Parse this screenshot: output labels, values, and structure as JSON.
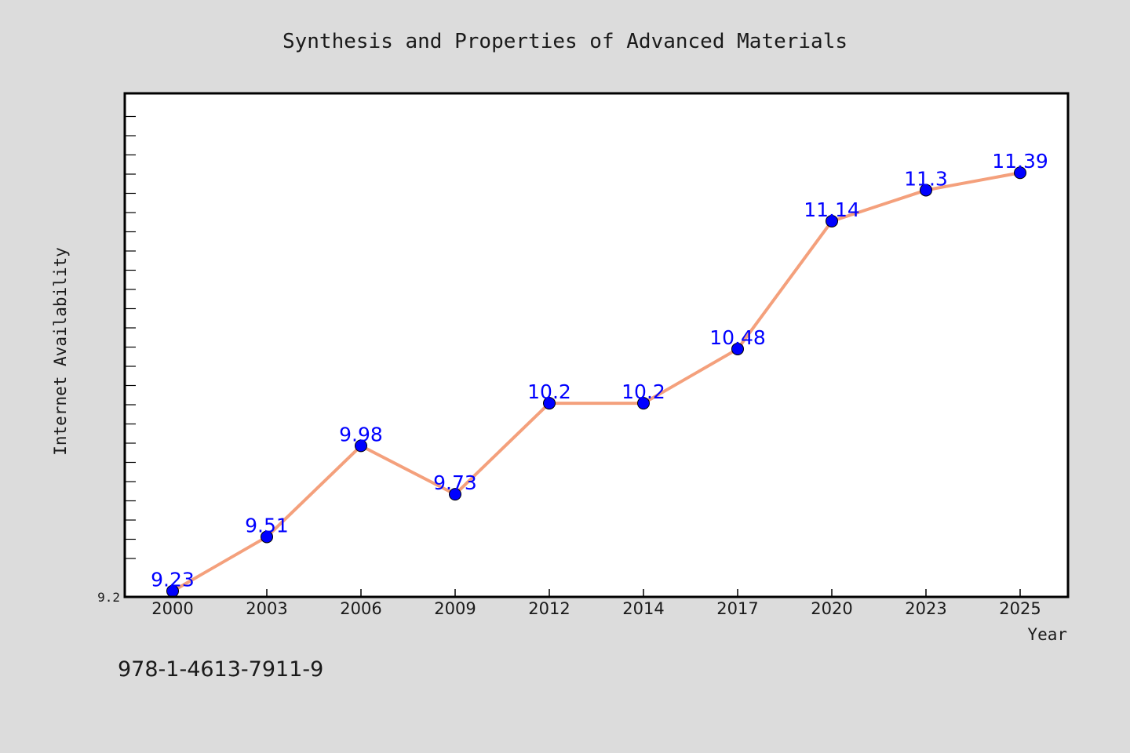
{
  "chart_data": {
    "type": "line",
    "title": "Synthesis and Properties of Advanced Materials",
    "xlabel": "Year",
    "ylabel": "Internet Availability",
    "categories": [
      "2000",
      "2003",
      "2006",
      "2009",
      "2012",
      "2014",
      "2017",
      "2020",
      "2023",
      "2025"
    ],
    "series": [
      {
        "values": [
          9.23,
          9.51,
          9.98,
          9.73,
          10.2,
          10.2,
          10.48,
          11.14,
          11.3,
          11.39
        ],
        "labels": [
          "9.23",
          "9.51",
          "9.98",
          "9.73",
          "10.2",
          "10.2",
          "10.48",
          "11.14",
          "11.3",
          "11.39"
        ],
        "line_color": "#f4a07c",
        "marker_color": "#0000ff"
      }
    ],
    "yticks": [
      "9.2"
    ],
    "ylim": [
      9.2,
      11.8
    ],
    "grid": false,
    "legend": "none"
  },
  "footer": {
    "isbn": "978-1-4613-7911-9"
  },
  "colors": {
    "background": "#dcdcdc",
    "plot_area": "#ffffff",
    "axis": "#000000",
    "data_label": "#0000ff"
  }
}
